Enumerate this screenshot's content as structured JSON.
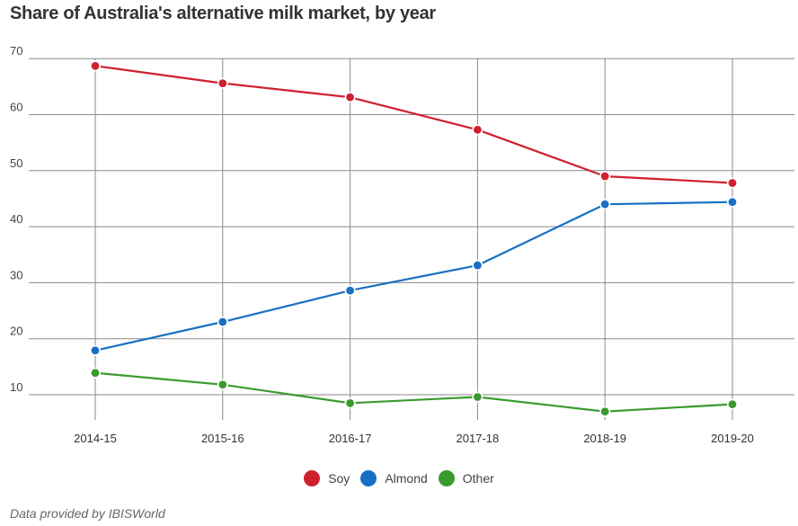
{
  "title": "Share of Australia's alternative milk market, by year",
  "source": "Data provided by IBISWorld",
  "chart_data": {
    "type": "line",
    "title": "Share of Australia's alternative milk market, by year",
    "xlabel": "",
    "ylabel": "",
    "categories": [
      "2014-15",
      "2015-16",
      "2016-17",
      "2017-18",
      "2018-19",
      "2019-20"
    ],
    "y_ticks": [
      10,
      20,
      30,
      40,
      50,
      60,
      70
    ],
    "ylim": [
      5,
      70
    ],
    "grid": true,
    "legend_position": "bottom-center",
    "series": [
      {
        "name": "Soy",
        "color": "#d0202e",
        "values": [
          68.7,
          65.6,
          63.1,
          57.3,
          49.0,
          47.8
        ]
      },
      {
        "name": "Almond",
        "color": "#1a6fc4",
        "values": [
          17.9,
          23.0,
          28.6,
          33.1,
          44.0,
          44.4
        ]
      },
      {
        "name": "Other",
        "color": "#3a9a2e",
        "values": [
          13.9,
          11.8,
          8.5,
          9.6,
          7.0,
          8.3
        ]
      }
    ]
  }
}
